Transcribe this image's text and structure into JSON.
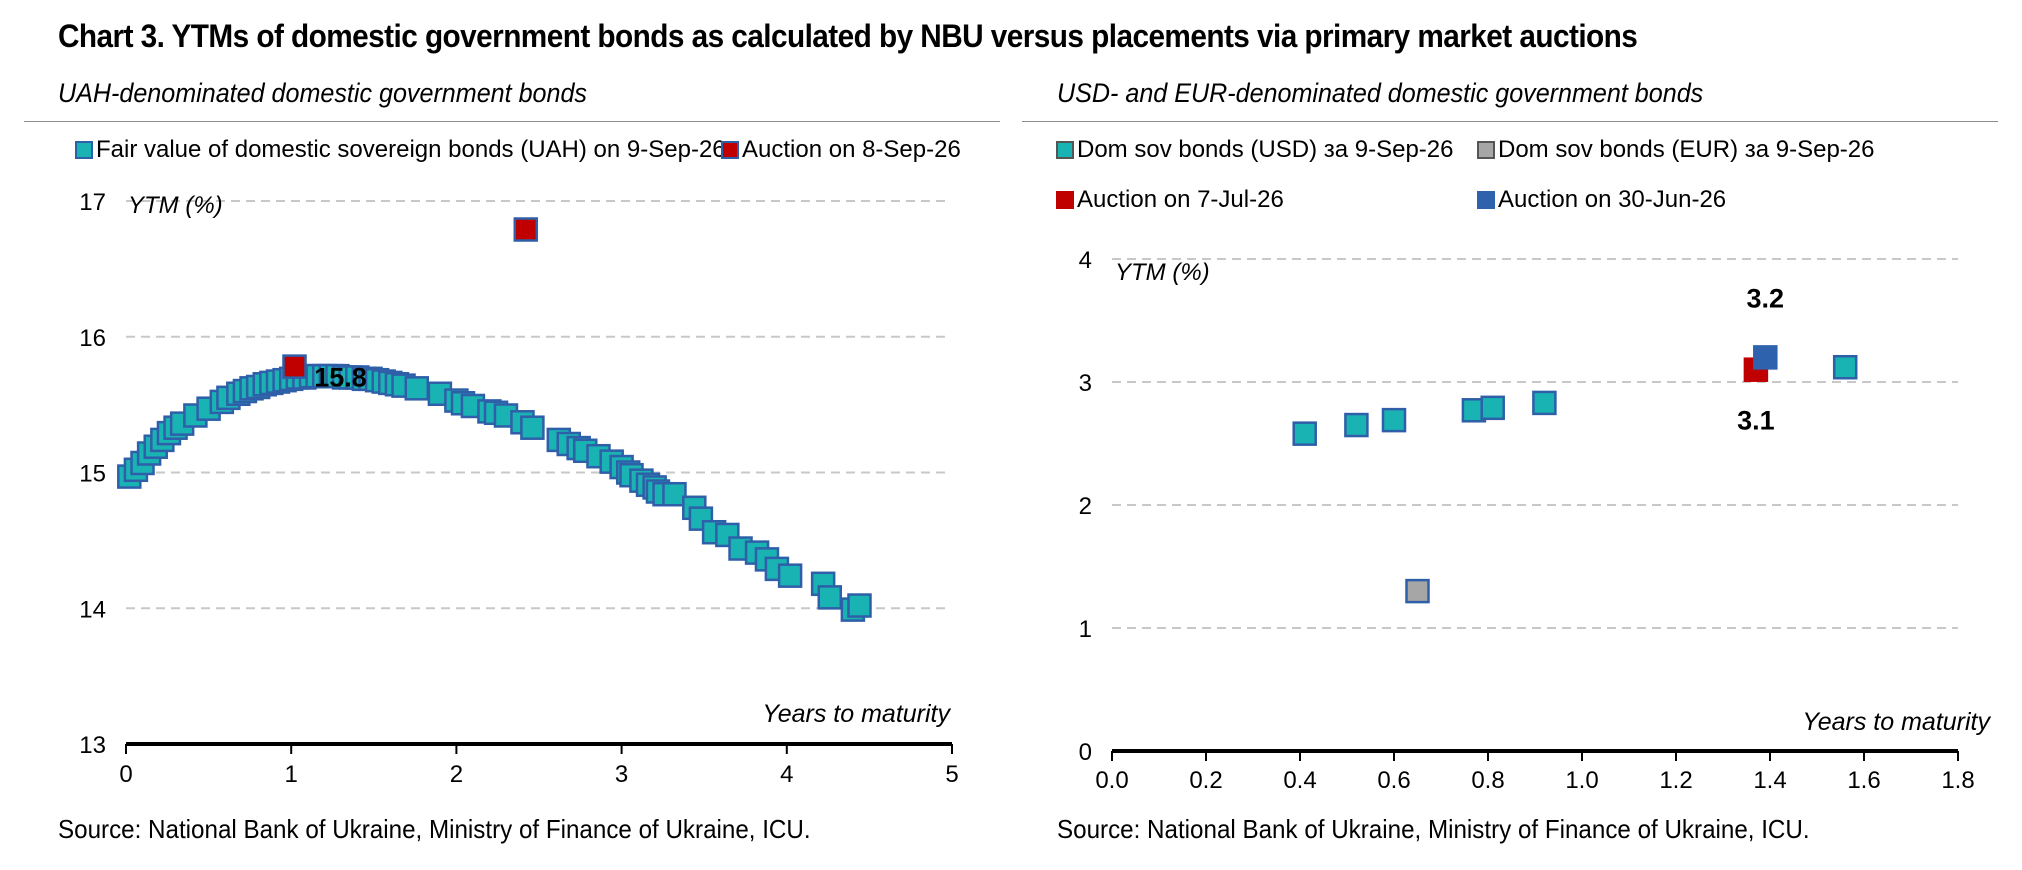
{
  "title": "Chart 3. YTMs of domestic government bonds as calculated by NBU versus placements via primary market auctions",
  "source_left": "Source: National Bank of Ukraine, Ministry of Finance of Ukraine, ICU.",
  "source_right": "Source: National Bank of Ukraine, Ministry of Finance of Ukraine, ICU.",
  "colors": {
    "teal": "#1ab3b3",
    "border": "#2e5fa8",
    "red": "#c00000",
    "blue": "#2e62ad",
    "grey": "#a6a6a6"
  },
  "chart_data": [
    {
      "type": "scatter",
      "subtitle": "UAH-denominated domestic government bonds",
      "xlabel": "Years to maturity",
      "ylabel": "YTM (%)",
      "xlim": [
        0,
        5
      ],
      "ylim": [
        13,
        17
      ],
      "xticks": [
        "0",
        "1",
        "2",
        "3",
        "4",
        "5"
      ],
      "yticks": [
        "13",
        "14",
        "15",
        "16",
        "17"
      ],
      "grid": "horizontal dashed",
      "legend": "top",
      "series": [
        {
          "name": "Fair value of domestic sovereign bonds (UAH) on 9-Sep-26",
          "color": "#1ab3b3",
          "points": [
            [
              0.02,
              14.97
            ],
            [
              0.06,
              15.02
            ],
            [
              0.1,
              15.07
            ],
            [
              0.14,
              15.14
            ],
            [
              0.18,
              15.19
            ],
            [
              0.22,
              15.24
            ],
            [
              0.26,
              15.29
            ],
            [
              0.3,
              15.33
            ],
            [
              0.34,
              15.36
            ],
            [
              0.42,
              15.42
            ],
            [
              0.5,
              15.47
            ],
            [
              0.58,
              15.52
            ],
            [
              0.62,
              15.55
            ],
            [
              0.68,
              15.58
            ],
            [
              0.72,
              15.6
            ],
            [
              0.76,
              15.62
            ],
            [
              0.8,
              15.63
            ],
            [
              0.84,
              15.65
            ],
            [
              0.88,
              15.66
            ],
            [
              0.92,
              15.67
            ],
            [
              0.96,
              15.68
            ],
            [
              1.0,
              15.69
            ],
            [
              1.04,
              15.7
            ],
            [
              1.08,
              15.7
            ],
            [
              1.12,
              15.71
            ],
            [
              1.16,
              15.71
            ],
            [
              1.2,
              15.71
            ],
            [
              1.24,
              15.71
            ],
            [
              1.28,
              15.71
            ],
            [
              1.32,
              15.7
            ],
            [
              1.36,
              15.7
            ],
            [
              1.4,
              15.7
            ],
            [
              1.44,
              15.69
            ],
            [
              1.48,
              15.69
            ],
            [
              1.52,
              15.68
            ],
            [
              1.56,
              15.67
            ],
            [
              1.6,
              15.66
            ],
            [
              1.64,
              15.65
            ],
            [
              1.68,
              15.64
            ],
            [
              1.76,
              15.62
            ],
            [
              1.9,
              15.58
            ],
            [
              2.0,
              15.53
            ],
            [
              2.04,
              15.51
            ],
            [
              2.1,
              15.49
            ],
            [
              2.2,
              15.45
            ],
            [
              2.24,
              15.44
            ],
            [
              2.3,
              15.42
            ],
            [
              2.4,
              15.37
            ],
            [
              2.46,
              15.33
            ],
            [
              2.62,
              15.24
            ],
            [
              2.68,
              15.21
            ],
            [
              2.74,
              15.18
            ],
            [
              2.78,
              15.16
            ],
            [
              2.86,
              15.12
            ],
            [
              2.94,
              15.08
            ],
            [
              3.0,
              15.04
            ],
            [
              3.04,
              15.0
            ],
            [
              3.06,
              14.98
            ],
            [
              3.12,
              14.94
            ],
            [
              3.16,
              14.91
            ],
            [
              3.2,
              14.89
            ],
            [
              3.22,
              14.86
            ],
            [
              3.26,
              14.84
            ],
            [
              3.32,
              14.84
            ],
            [
              3.44,
              14.74
            ],
            [
              3.48,
              14.66
            ],
            [
              3.56,
              14.56
            ],
            [
              3.64,
              14.54
            ],
            [
              3.72,
              14.44
            ],
            [
              3.82,
              14.41
            ],
            [
              3.88,
              14.36
            ],
            [
              3.94,
              14.29
            ],
            [
              4.02,
              14.24
            ],
            [
              4.22,
              14.18
            ],
            [
              4.26,
              14.08
            ],
            [
              4.4,
              13.99
            ],
            [
              4.44,
              14.02
            ]
          ]
        },
        {
          "name": "Auction on 8-Sep-26",
          "color": "#c00000",
          "points": [
            [
              1.02,
              15.78
            ],
            [
              2.42,
              16.79
            ]
          ],
          "labels": [
            {
              "text": "15.8",
              "x": 1.02,
              "y": 15.78
            }
          ]
        }
      ]
    },
    {
      "type": "scatter",
      "subtitle": "USD- and EUR-denominated domestic government bonds",
      "xlabel": "Years to maturity",
      "ylabel": "YTM (%)",
      "xlim": [
        0,
        1.8
      ],
      "ylim": [
        0,
        4
      ],
      "xticks": [
        "0.0",
        "0.2",
        "0.4",
        "0.6",
        "0.8",
        "1.0",
        "1.2",
        "1.4",
        "1.6",
        "1.8"
      ],
      "yticks": [
        "0",
        "1",
        "2",
        "3",
        "4"
      ],
      "grid": "horizontal dashed",
      "legend": "top",
      "series": [
        {
          "name": "Dom sov bonds (USD) за 9-Sep-26",
          "color": "#1ab3b3",
          "points": [
            [
              0.41,
              2.58
            ],
            [
              0.52,
              2.65
            ],
            [
              0.6,
              2.69
            ],
            [
              0.77,
              2.77
            ],
            [
              0.81,
              2.79
            ],
            [
              0.92,
              2.83
            ],
            [
              1.56,
              3.12
            ]
          ]
        },
        {
          "name": "Dom sov bonds (EUR) за 9-Sep-26",
          "color": "#a6a6a6",
          "points": [
            [
              0.65,
              1.3
            ]
          ]
        },
        {
          "name": "Auction on 7-Jul-26",
          "color": "#c00000",
          "points": [
            [
              1.37,
              3.1
            ]
          ],
          "labels": [
            {
              "text": "3.1",
              "x": 1.37,
              "y": 3.1
            }
          ]
        },
        {
          "name": "Auction on 30-Jun-26",
          "color": "#2e62ad",
          "points": [
            [
              1.39,
              3.2
            ]
          ],
          "labels": [
            {
              "text": "3.2",
              "x": 1.39,
              "y": 3.2
            }
          ]
        }
      ]
    }
  ]
}
